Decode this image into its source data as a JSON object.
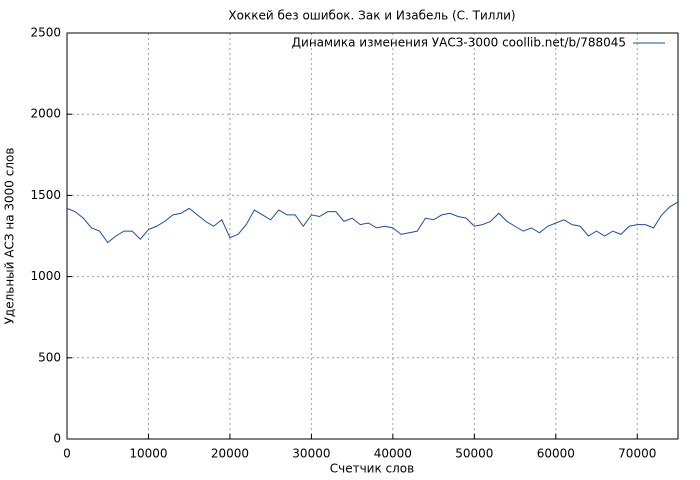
{
  "chart_data": {
    "type": "line",
    "title": "Хоккей без ошибок. Зак и Изабель (С. Тилли)",
    "x_label": "Счетчик слов",
    "y_label": "Удельный АСЗ на 3000 слов",
    "x": [
      0,
      1000,
      2000,
      3000,
      4000,
      5000,
      6000,
      7000,
      8000,
      9000,
      10000,
      11000,
      12000,
      13000,
      14000,
      15000,
      16000,
      17000,
      18000,
      19000,
      20000,
      21000,
      22000,
      23000,
      24000,
      25000,
      26000,
      27000,
      28000,
      29000,
      30000,
      31000,
      32000,
      33000,
      34000,
      35000,
      36000,
      37000,
      38000,
      39000,
      40000,
      41000,
      42000,
      43000,
      44000,
      45000,
      46000,
      47000,
      48000,
      49000,
      50000,
      51000,
      52000,
      53000,
      54000,
      55000,
      56000,
      57000,
      58000,
      59000,
      60000,
      61000,
      62000,
      63000,
      64000,
      65000,
      66000,
      67000,
      68000,
      69000,
      70000,
      71000,
      72000,
      73000,
      74000,
      75000
    ],
    "series": [
      {
        "name": "Динамика изменения УАСЗ-3000 coollib.net/b/788045",
        "color": "#1f4e9c",
        "values": [
          1420,
          1400,
          1360,
          1300,
          1280,
          1210,
          1250,
          1280,
          1280,
          1230,
          1290,
          1310,
          1340,
          1380,
          1390,
          1420,
          1380,
          1340,
          1310,
          1350,
          1240,
          1260,
          1320,
          1410,
          1380,
          1350,
          1410,
          1380,
          1380,
          1310,
          1380,
          1370,
          1400,
          1400,
          1340,
          1360,
          1320,
          1330,
          1300,
          1310,
          1300,
          1260,
          1270,
          1280,
          1360,
          1350,
          1380,
          1390,
          1370,
          1360,
          1310,
          1320,
          1340,
          1390,
          1340,
          1310,
          1280,
          1300,
          1270,
          1310,
          1330,
          1350,
          1320,
          1310,
          1250,
          1280,
          1250,
          1280,
          1260,
          1310,
          1320,
          1320,
          1300,
          1380,
          1430,
          1460
        ]
      }
    ],
    "xlim": [
      0,
      75000
    ],
    "ylim": [
      0,
      2500
    ],
    "xticks": [
      0,
      10000,
      20000,
      30000,
      40000,
      50000,
      60000,
      70000
    ],
    "yticks": [
      0,
      500,
      1000,
      1500,
      2000,
      2500
    ],
    "grid": true,
    "legend": "top-right"
  }
}
